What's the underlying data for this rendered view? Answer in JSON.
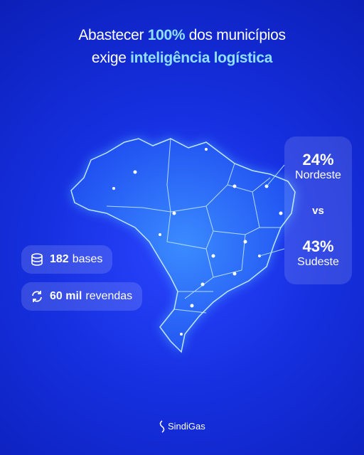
{
  "header": {
    "line1": [
      "Abastecer ",
      "100%",
      " dos municípios"
    ],
    "line2": [
      "exige ",
      "inteligência logística"
    ]
  },
  "left_stats": [
    {
      "number": "182",
      "label": "bases"
    },
    {
      "number": "60 mil",
      "label": "revendas"
    }
  ],
  "comparison": {
    "first": {
      "value": "24%",
      "label": "Nordeste"
    },
    "separator": "vs",
    "second": {
      "value": "43%",
      "label": "Sudeste"
    }
  },
  "footer": {
    "brand": "SindiGas"
  }
}
